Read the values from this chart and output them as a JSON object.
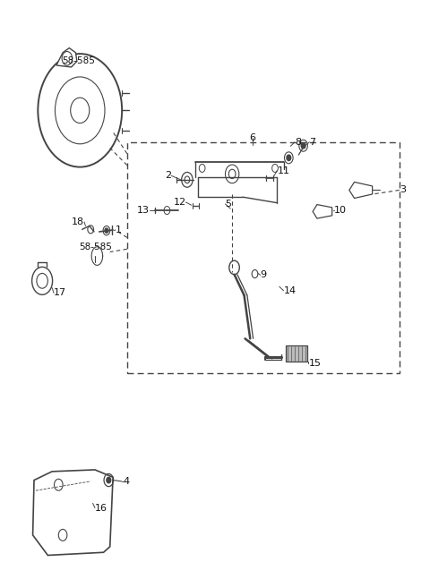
{
  "bg_color": "#ffffff",
  "line_color": "#444444",
  "text_color": "#111111",
  "fig_width": 4.8,
  "fig_height": 6.47,
  "dpi": 100
}
